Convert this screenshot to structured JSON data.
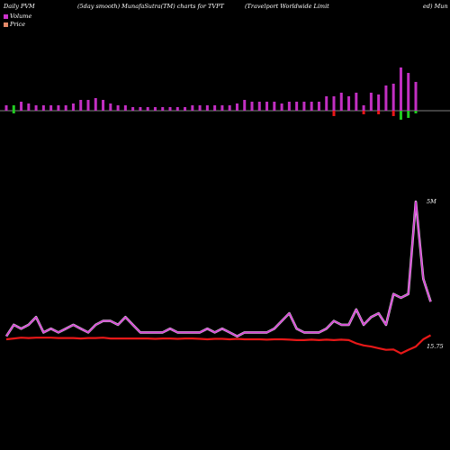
{
  "header": {
    "left": "Daily PVM",
    "center": "(5day smooth) MunafaSutra(TM) charts for TVPT",
    "right": "(Travelport Worldwide  Limit",
    "far_right": "ed) Mun"
  },
  "legend": {
    "volume": "Volume",
    "price": "Price",
    "volume_color": "#cc33cc",
    "price_color": "#e58a6a"
  },
  "chart_data": {
    "type": "bar+line",
    "volume_bars": [
      {
        "v": 0.3,
        "c": "pos"
      },
      {
        "v": 0.3,
        "c": "neg"
      },
      {
        "v": 0.5,
        "c": "pos"
      },
      {
        "v": 0.4,
        "c": "pos"
      },
      {
        "v": 0.3,
        "c": "pos"
      },
      {
        "v": 0.3,
        "c": "pos"
      },
      {
        "v": 0.3,
        "c": "pos"
      },
      {
        "v": 0.3,
        "c": "pos"
      },
      {
        "v": 0.3,
        "c": "pos"
      },
      {
        "v": 0.4,
        "c": "pos"
      },
      {
        "v": 0.6,
        "c": "pos"
      },
      {
        "v": 0.6,
        "c": "pos"
      },
      {
        "v": 0.7,
        "c": "pos"
      },
      {
        "v": 0.6,
        "c": "pos"
      },
      {
        "v": 0.4,
        "c": "pos"
      },
      {
        "v": 0.3,
        "c": "pos"
      },
      {
        "v": 0.3,
        "c": "pos"
      },
      {
        "v": 0.2,
        "c": "pos"
      },
      {
        "v": 0.2,
        "c": "pos"
      },
      {
        "v": 0.2,
        "c": "pos"
      },
      {
        "v": 0.2,
        "c": "pos"
      },
      {
        "v": 0.2,
        "c": "pos"
      },
      {
        "v": 0.2,
        "c": "pos"
      },
      {
        "v": 0.2,
        "c": "pos"
      },
      {
        "v": 0.2,
        "c": "pos"
      },
      {
        "v": 0.3,
        "c": "pos"
      },
      {
        "v": 0.3,
        "c": "pos"
      },
      {
        "v": 0.3,
        "c": "pos"
      },
      {
        "v": 0.3,
        "c": "pos"
      },
      {
        "v": 0.3,
        "c": "pos"
      },
      {
        "v": 0.3,
        "c": "pos"
      },
      {
        "v": 0.4,
        "c": "pos"
      },
      {
        "v": 0.6,
        "c": "pos"
      },
      {
        "v": 0.5,
        "c": "pos"
      },
      {
        "v": 0.5,
        "c": "pos"
      },
      {
        "v": 0.5,
        "c": "pos"
      },
      {
        "v": 0.5,
        "c": "pos"
      },
      {
        "v": 0.4,
        "c": "pos"
      },
      {
        "v": 0.5,
        "c": "pos"
      },
      {
        "v": 0.5,
        "c": "pos"
      },
      {
        "v": 0.5,
        "c": "pos"
      },
      {
        "v": 0.5,
        "c": "pos"
      },
      {
        "v": 0.5,
        "c": "pos"
      },
      {
        "v": 0.8,
        "c": "pos"
      },
      {
        "v": 0.8,
        "c": "pos"
      },
      {
        "v": 1.0,
        "c": "pos"
      },
      {
        "v": 0.8,
        "c": "pos"
      },
      {
        "v": 1.0,
        "c": "pos"
      },
      {
        "v": 0.3,
        "c": "pos"
      },
      {
        "v": 1.0,
        "c": "pos"
      },
      {
        "v": 0.9,
        "c": "pos"
      },
      {
        "v": 1.4,
        "c": "pos"
      },
      {
        "v": 1.5,
        "c": "pos"
      },
      {
        "v": 2.4,
        "c": "pos"
      },
      {
        "v": 2.1,
        "c": "pos"
      },
      {
        "v": 1.6,
        "c": "pos"
      }
    ],
    "price_bars_below": [
      {
        "i": 1,
        "v": 0.15,
        "c": "green"
      },
      {
        "i": 44,
        "v": 0.3,
        "c": "red"
      },
      {
        "i": 48,
        "v": 0.2,
        "c": "red"
      },
      {
        "i": 50,
        "v": 0.2,
        "c": "red"
      },
      {
        "i": 52,
        "v": 0.3,
        "c": "red"
      },
      {
        "i": 53,
        "v": 0.5,
        "c": "green"
      },
      {
        "i": 54,
        "v": 0.4,
        "c": "green"
      },
      {
        "i": 55,
        "v": 0.15,
        "c": "green"
      }
    ],
    "volume_line": [
      4.1,
      4.4,
      4.3,
      4.4,
      4.6,
      4.2,
      4.3,
      4.2,
      4.3,
      4.4,
      4.3,
      4.2,
      4.4,
      4.5,
      4.5,
      4.4,
      4.6,
      4.4,
      4.2,
      4.2,
      4.2,
      4.2,
      4.3,
      4.2,
      4.2,
      4.2,
      4.2,
      4.3,
      4.2,
      4.3,
      4.2,
      4.1,
      4.2,
      4.2,
      4.2,
      4.2,
      4.3,
      4.5,
      4.7,
      4.3,
      4.2,
      4.2,
      4.2,
      4.3,
      4.5,
      4.4,
      4.4,
      4.8,
      4.4,
      4.6,
      4.7,
      4.4,
      5.2,
      5.1,
      5.2,
      7.6,
      5.6,
      5.0
    ],
    "price_line": [
      15.4,
      15.42,
      15.44,
      15.43,
      15.44,
      15.44,
      15.44,
      15.43,
      15.43,
      15.43,
      15.42,
      15.43,
      15.43,
      15.44,
      15.42,
      15.42,
      15.42,
      15.42,
      15.42,
      15.42,
      15.41,
      15.42,
      15.42,
      15.41,
      15.42,
      15.42,
      15.41,
      15.4,
      15.41,
      15.41,
      15.4,
      15.41,
      15.4,
      15.4,
      15.4,
      15.39,
      15.4,
      15.4,
      15.39,
      15.38,
      15.38,
      15.39,
      15.38,
      15.39,
      15.38,
      15.39,
      15.38,
      15.3,
      15.25,
      15.22,
      15.18,
      15.14,
      15.15,
      15.05,
      15.14,
      15.22,
      15.4,
      15.5
    ],
    "volume_last_label": "5M",
    "price_last_label": "15.75",
    "colors": {
      "volume_pos": "#c22fc2",
      "volume_line": "#d53ad5",
      "price_line": "#e81818",
      "green": "#22cc22",
      "red": "#e81818",
      "baseline": "#aaaaaa"
    }
  }
}
